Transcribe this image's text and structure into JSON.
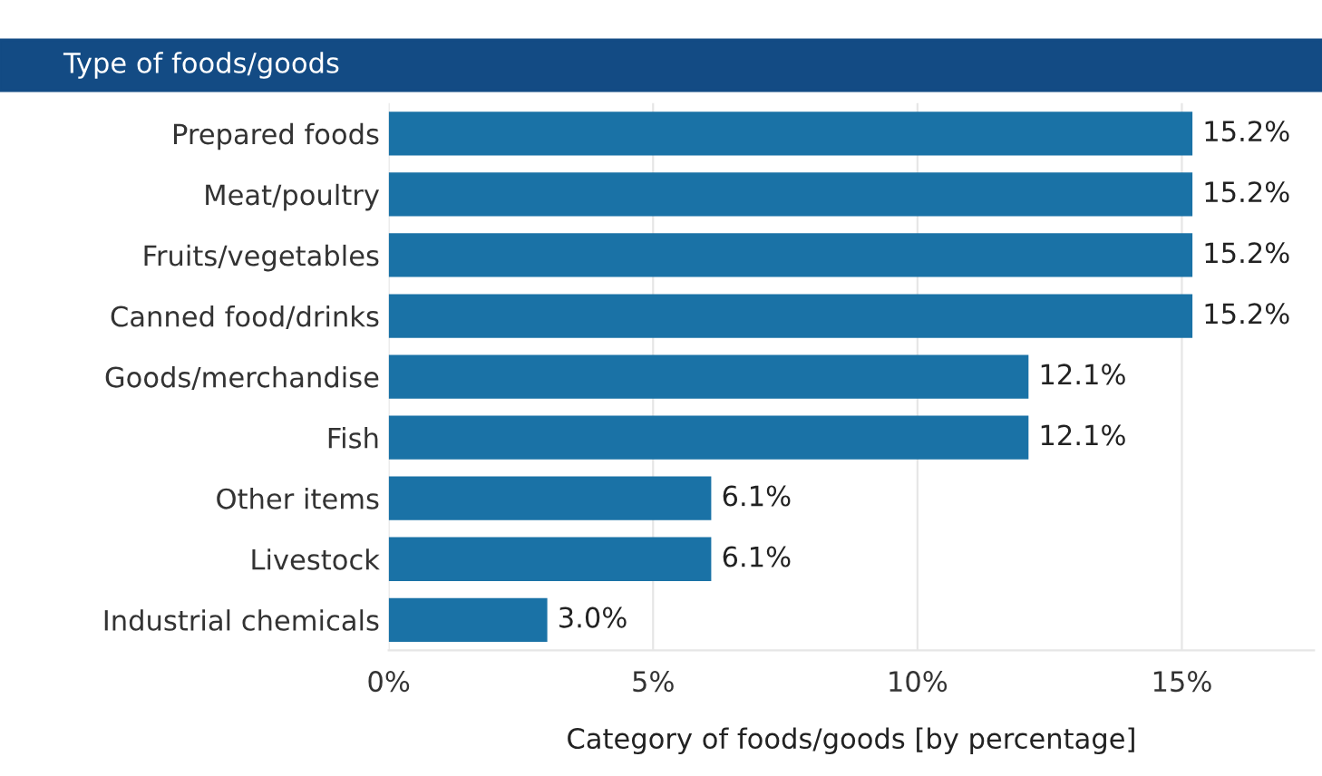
{
  "chart_data": {
    "type": "bar",
    "orientation": "horizontal",
    "title": "Type of foods/goods",
    "xlabel": "Category of foods/goods [by percentage]",
    "categories": [
      "Prepared foods",
      "Meat/poultry",
      "Fruits/vegetables",
      "Canned food/drinks",
      "Goods/merchandise",
      "Fish",
      "Other items",
      "Livestock",
      "Industrial chemicals"
    ],
    "values": [
      15.2,
      15.2,
      15.2,
      15.2,
      12.1,
      12.1,
      6.1,
      6.1,
      3.0
    ],
    "value_labels": [
      "15.2%",
      "15.2%",
      "15.2%",
      "15.2%",
      "12.1%",
      "12.1%",
      "6.1%",
      "6.1%",
      "3.0%"
    ],
    "color": "#1a72a6",
    "xlim": [
      0,
      17.5
    ],
    "xticks": [
      {
        "value": 0,
        "label": "0%"
      },
      {
        "value": 5,
        "label": "5%"
      },
      {
        "value": 10,
        "label": "10%"
      },
      {
        "value": 15,
        "label": "15%"
      }
    ],
    "grid": "x",
    "legend": false
  }
}
